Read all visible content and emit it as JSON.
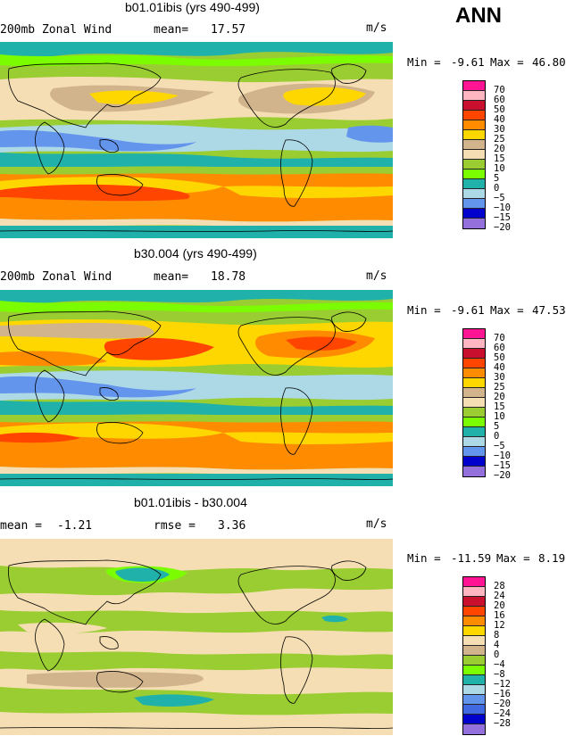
{
  "season": "ANN",
  "panels": [
    {
      "title": "b01.01ibis (yrs 490-499)",
      "field": "200mb Zonal Wind",
      "stat_label": "mean=",
      "stat_value": "17.57",
      "units": "m/s",
      "min_label": "Min =",
      "min_value": "-9.61",
      "max_label": "Max =",
      "max_value": "46.80"
    },
    {
      "title": "b30.004 (yrs 490-499)",
      "field": "200mb Zonal Wind",
      "stat_label": "mean=",
      "stat_value": "18.78",
      "units": "m/s",
      "min_label": "Min =",
      "min_value": "-9.61",
      "max_label": "Max =",
      "max_value": "47.53"
    },
    {
      "title": "b01.01ibis - b30.004",
      "mean_label": "mean =",
      "mean_value": "-1.21",
      "rmse_label": "rmse =",
      "rmse_value": "3.36",
      "units": "m/s",
      "min_label": "Min =",
      "min_value": "-11.59",
      "max_label": "Max =",
      "max_value": "8.19"
    }
  ],
  "chart_data": [
    {
      "type": "heatmap",
      "title": "b01.01ibis (yrs 490-499)",
      "variable": "200mb Zonal Wind",
      "units": "m/s",
      "mean": 17.57,
      "min": -9.61,
      "max": 46.8,
      "levels": [
        "70",
        "60",
        "50",
        "40",
        "30",
        "25",
        "20",
        "15",
        "10",
        "5",
        "0",
        "−5",
        "−10",
        "−15",
        "−20"
      ],
      "colors": [
        "#ff1493",
        "#ffb6c1",
        "#c8102e",
        "#ff4500",
        "#ff8c00",
        "#ffd700",
        "#d2b48c",
        "#f5deb3",
        "#9acd32",
        "#7cfc00",
        "#20b2aa",
        "#add8e6",
        "#6495ed",
        "#0000cd",
        "#9370db"
      ]
    },
    {
      "type": "heatmap",
      "title": "b30.004 (yrs 490-499)",
      "variable": "200mb Zonal Wind",
      "units": "m/s",
      "mean": 18.78,
      "min": -9.61,
      "max": 47.53,
      "levels": [
        "70",
        "60",
        "50",
        "40",
        "30",
        "25",
        "20",
        "15",
        "10",
        "5",
        "0",
        "−5",
        "−10",
        "−15",
        "−20"
      ],
      "colors": [
        "#ff1493",
        "#ffb6c1",
        "#c8102e",
        "#ff4500",
        "#ff8c00",
        "#ffd700",
        "#d2b48c",
        "#f5deb3",
        "#9acd32",
        "#7cfc00",
        "#20b2aa",
        "#add8e6",
        "#6495ed",
        "#0000cd",
        "#9370db"
      ]
    },
    {
      "type": "heatmap",
      "title": "b01.01ibis - b30.004",
      "units": "m/s",
      "mean": -1.21,
      "rmse": 3.36,
      "min": -11.59,
      "max": 8.19,
      "levels": [
        "28",
        "24",
        "20",
        "16",
        "12",
        "8",
        "4",
        "0",
        "−4",
        "−8",
        "−12",
        "−16",
        "−20",
        "−24",
        "−28"
      ],
      "colors": [
        "#ff1493",
        "#ffb6c1",
        "#c8102e",
        "#ff4500",
        "#ff8c00",
        "#ffd700",
        "#f5deb3",
        "#d2b48c",
        "#9acd32",
        "#7cfc00",
        "#20b2aa",
        "#add8e6",
        "#6495ed",
        "#4169e1",
        "#0000cd",
        "#9370db"
      ]
    }
  ]
}
